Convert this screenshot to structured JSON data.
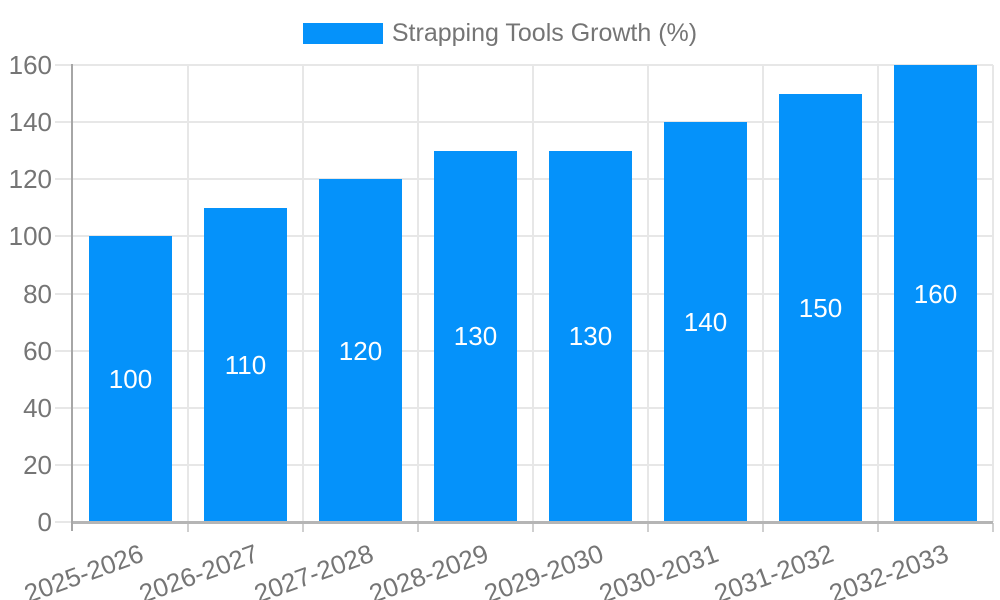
{
  "legend": {
    "label": "Strapping Tools Growth (%)"
  },
  "chart_data": {
    "type": "bar",
    "title": "Strapping Tools Growth (%)",
    "categories": [
      "2025-2026",
      "2026-2027",
      "2027-2028",
      "2028-2029",
      "2029-2030",
      "2030-2031",
      "2031-2032",
      "2032-2033"
    ],
    "series": [
      {
        "name": "Strapping Tools Growth (%)",
        "values": [
          100,
          110,
          120,
          130,
          130,
          140,
          150,
          160
        ]
      }
    ],
    "data_labels": [
      "100",
      "110",
      "120",
      "130",
      "130",
      "140",
      "150",
      "160"
    ],
    "xlabel": "",
    "ylabel": "",
    "ylim": [
      0,
      160
    ],
    "yticks": [
      0,
      20,
      40,
      60,
      80,
      100,
      120,
      140,
      160
    ],
    "grid": "both",
    "legend_position": "top-center",
    "x_label_rotation_deg": -20,
    "colors": {
      "bar": "#0592fa",
      "bar_label": "#ffffff",
      "axis_text": "#757575",
      "gridline": "#e7e7e7",
      "axis_line": "#a6a6a6",
      "baseline": "#b5b5b5",
      "tick": "#cfcfcf"
    }
  }
}
